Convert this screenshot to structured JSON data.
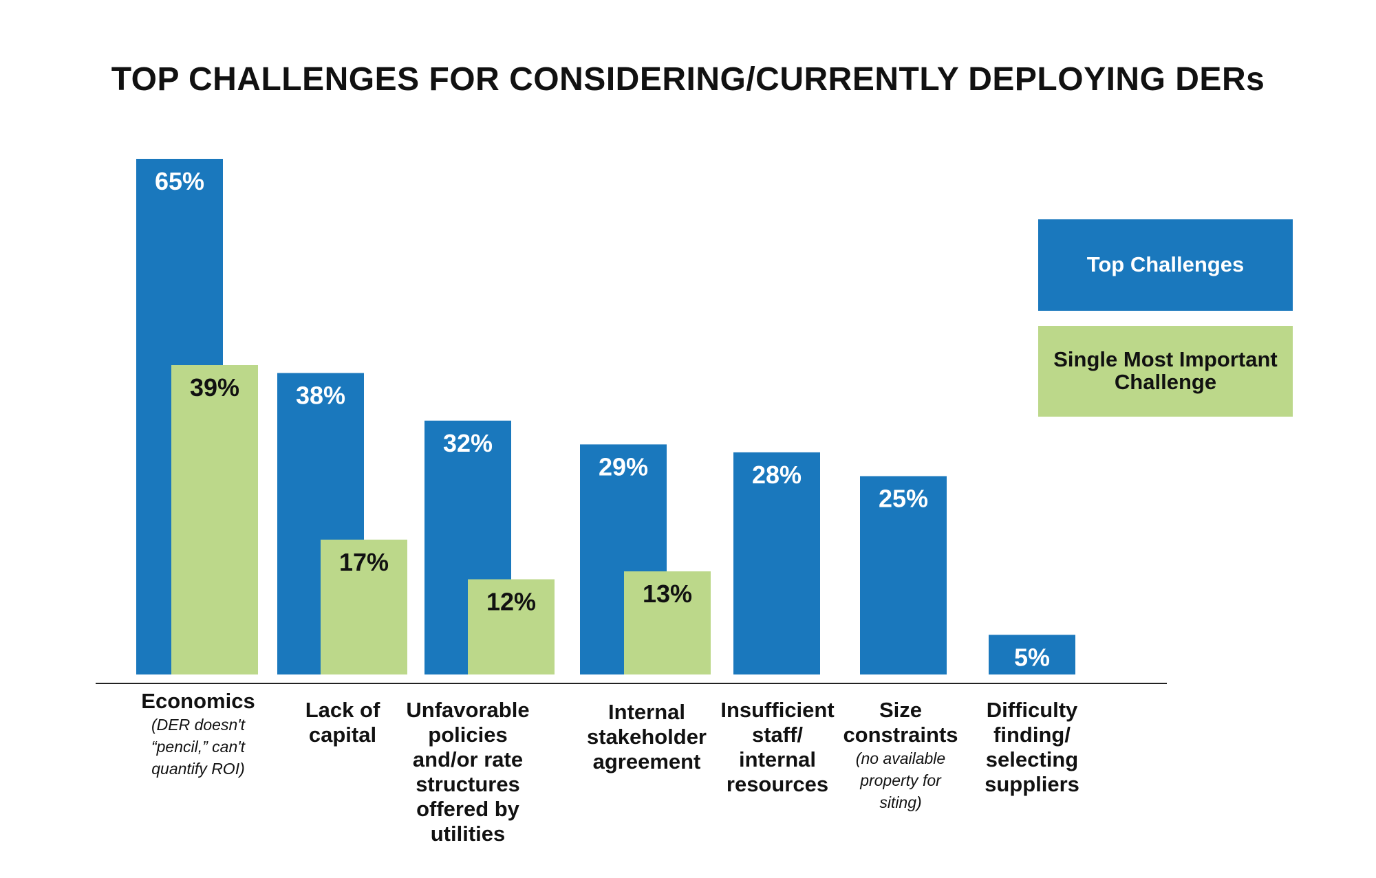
{
  "chart_data": {
    "type": "bar",
    "title": "TOP CHALLENGES FOR CONSIDERING/CURRENTLY DEPLOYING DERs",
    "xlabel": "",
    "ylabel": "",
    "ylim": [
      0,
      65
    ],
    "grid": false,
    "legend_position": "right",
    "colors": {
      "top": "#1a78bd",
      "single": "#bcd88a"
    },
    "categories": [
      {
        "main": "Economics",
        "note": "(DER doesn't\n“pencil,” can't\nquantify ROI)"
      },
      {
        "main": "Lack of\ncapital",
        "note": ""
      },
      {
        "main": "Unfavorable\npolicies\nand/or rate\nstructures\noffered by\nutilities",
        "note": ""
      },
      {
        "main": "Internal\nstakeholder\nagreement",
        "note": ""
      },
      {
        "main": "Insufficient\nstaff/\ninternal\nresources",
        "note": ""
      },
      {
        "main": "Size\nconstraints",
        "note": "(no available\nproperty for\nsiting)"
      },
      {
        "main": "Difficulty\nfinding/\nselecting\nsuppliers",
        "note": ""
      }
    ],
    "series": [
      {
        "name": "Top Challenges",
        "values": [
          65,
          38,
          32,
          29,
          28,
          25,
          5
        ],
        "labels": [
          "65%",
          "38%",
          "32%",
          "29%",
          "28%",
          "25%",
          "5%"
        ]
      },
      {
        "name": "Single Most Important Challenge",
        "values": [
          39,
          17,
          12,
          13,
          null,
          null,
          null
        ],
        "labels": [
          "39%",
          "17%",
          "12%",
          "13%",
          "",
          "",
          ""
        ]
      }
    ]
  }
}
